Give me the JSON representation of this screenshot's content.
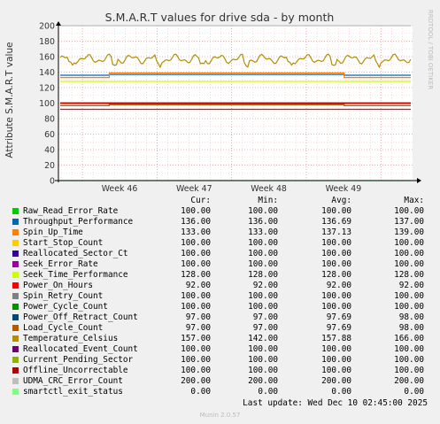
{
  "chart_data": {
    "type": "line",
    "title": "S.M.A.R.T values for drive sda - by month",
    "ylabel": "Attribute S.M.A.R.T value",
    "xlabel": "",
    "ylim": [
      0,
      200
    ],
    "yticks": [
      0,
      20,
      40,
      60,
      80,
      100,
      120,
      140,
      160,
      180,
      200
    ],
    "xticks": [
      "Week 46",
      "Week 47",
      "Week 48",
      "Week 49"
    ],
    "side_text": "RRDTOOL / TOBI OETIKER",
    "footer": "Munin 2.0.57",
    "last_update": "Last update: Wed Dec 10 02:45:00 2025",
    "columns": [
      "Cur:",
      "Min:",
      "Avg:",
      "Max:"
    ],
    "grid": true,
    "legend_position": "bottom",
    "series": [
      {
        "name": "Raw_Read_Error_Rate",
        "color": "#00cc00",
        "cur": "100.00",
        "min": "100.00",
        "avg": "100.00",
        "max": "100.00",
        "level": 100
      },
      {
        "name": "Throughput_Performance",
        "color": "#0066b3",
        "cur": "136.00",
        "min": "136.00",
        "avg": "136.69",
        "max": "137.00",
        "level": 136,
        "step": [
          137,
          0.14,
          0.81
        ]
      },
      {
        "name": "Spin_Up_Time",
        "color": "#ff8000",
        "cur": "133.00",
        "min": "133.00",
        "avg": "137.13",
        "max": "139.00",
        "level": 133,
        "step": [
          139,
          0.14,
          0.81
        ]
      },
      {
        "name": "Start_Stop_Count",
        "color": "#ffcc00",
        "cur": "100.00",
        "min": "100.00",
        "avg": "100.00",
        "max": "100.00",
        "level": 100
      },
      {
        "name": "Reallocated_Sector_Ct",
        "color": "#330099",
        "cur": "100.00",
        "min": "100.00",
        "avg": "100.00",
        "max": "100.00",
        "level": 100
      },
      {
        "name": "Seek_Error_Rate",
        "color": "#990099",
        "cur": "100.00",
        "min": "100.00",
        "avg": "100.00",
        "max": "100.00",
        "level": 100
      },
      {
        "name": "Seek_Time_Performance",
        "color": "#ccff00",
        "cur": "128.00",
        "min": "128.00",
        "avg": "128.00",
        "max": "128.00",
        "level": 128
      },
      {
        "name": "Power_On_Hours",
        "color": "#ff0000",
        "cur": "92.00",
        "min": "92.00",
        "avg": "92.00",
        "max": "92.00",
        "level": 92
      },
      {
        "name": "Spin_Retry_Count",
        "color": "#808080",
        "cur": "100.00",
        "min": "100.00",
        "avg": "100.00",
        "max": "100.00",
        "level": 100
      },
      {
        "name": "Power_Cycle_Count",
        "color": "#008f00",
        "cur": "100.00",
        "min": "100.00",
        "avg": "100.00",
        "max": "100.00",
        "level": 100
      },
      {
        "name": "Power_Off_Retract_Count",
        "color": "#00487d",
        "cur": "97.00",
        "min": "97.00",
        "avg": "97.69",
        "max": "98.00",
        "level": 97,
        "step": [
          98,
          0.14,
          0.81
        ]
      },
      {
        "name": "Load_Cycle_Count",
        "color": "#b35a00",
        "cur": "97.00",
        "min": "97.00",
        "avg": "97.69",
        "max": "98.00",
        "level": 97,
        "step": [
          98,
          0.14,
          0.81
        ]
      },
      {
        "name": "Temperature_Celsius",
        "color": "#b38f00",
        "cur": "157.00",
        "min": "142.00",
        "avg": "157.88",
        "max": "166.00",
        "level": 157,
        "noisy": true
      },
      {
        "name": "Reallocated_Event_Count",
        "color": "#6b006b",
        "cur": "100.00",
        "min": "100.00",
        "avg": "100.00",
        "max": "100.00",
        "level": 100
      },
      {
        "name": "Current_Pending_Sector",
        "color": "#8fb300",
        "cur": "100.00",
        "min": "100.00",
        "avg": "100.00",
        "max": "100.00",
        "level": 100
      },
      {
        "name": "Offline_Uncorrectable",
        "color": "#b30000",
        "cur": "100.00",
        "min": "100.00",
        "avg": "100.00",
        "max": "100.00",
        "level": 100
      },
      {
        "name": "UDMA_CRC_Error_Count",
        "color": "#bebebe",
        "cur": "200.00",
        "min": "200.00",
        "avg": "200.00",
        "max": "200.00",
        "level": 200
      },
      {
        "name": "smartctl_exit_status",
        "color": "#80ff80",
        "cur": "0.00",
        "min": "0.00",
        "avg": "0.00",
        "max": "0.00",
        "level": 0
      }
    ]
  }
}
